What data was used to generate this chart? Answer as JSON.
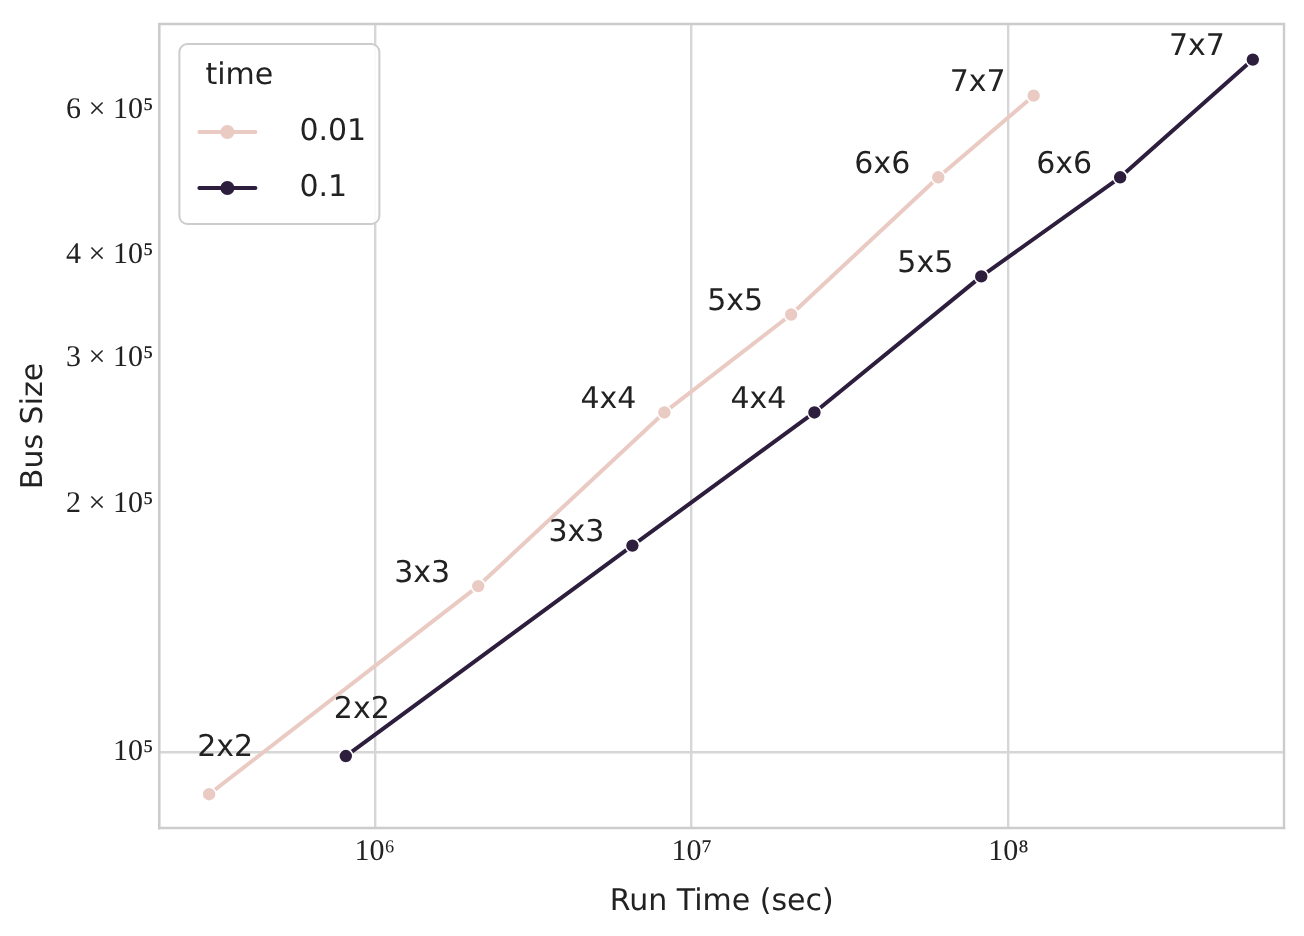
{
  "chart_data": {
    "type": "line",
    "xlabel": "Run Time (sec)",
    "ylabel": "Bus Size",
    "legend_title": "time",
    "legend": "top left",
    "log": "xy",
    "grid": true,
    "marker": "circle",
    "line_style": "solid",
    "xlim": [
      209000,
      740000000
    ],
    "ylim": [
      81000,
      762000
    ],
    "xticks": [
      {
        "value": 1000000,
        "label": "10⁶"
      },
      {
        "value": 10000000,
        "label": "10⁷"
      },
      {
        "value": 100000000,
        "label": "10⁸"
      }
    ],
    "yticks": [
      {
        "value": 100000,
        "label": "10⁵"
      },
      {
        "value": 200000,
        "label": "2 × 10⁵"
      },
      {
        "value": 300000,
        "label": "3 × 10⁵"
      },
      {
        "value": 400000,
        "label": "4 × 10⁵"
      },
      {
        "value": 600000,
        "label": "6 × 10⁵"
      }
    ],
    "series": [
      {
        "name": "0.01",
        "color": "#eacbc3",
        "x": [
          300000,
          2120000,
          8200000,
          20600000,
          60000000,
          120000000
        ],
        "values": [
          89000,
          159000,
          258000,
          339000,
          497000,
          624000
        ]
      },
      {
        "name": "0.1",
        "color": "#2d1e3e",
        "x": [
          810000,
          6500000,
          24400000,
          82000000,
          225000000,
          590000000
        ],
        "values": [
          99000,
          178000,
          258000,
          377000,
          497000,
          690000
        ]
      }
    ],
    "annotations": [
      {
        "text": "2x2",
        "x": 300000,
        "y": 89000
      },
      {
        "text": "3x3",
        "x": 2120000,
        "y": 159000
      },
      {
        "text": "4x4",
        "x": 8200000,
        "y": 258000
      },
      {
        "text": "5x5",
        "x": 20600000,
        "y": 339000
      },
      {
        "text": "6x6",
        "x": 60000000,
        "y": 497000
      },
      {
        "text": "7x7",
        "x": 120000000,
        "y": 624000
      },
      {
        "text": "2x2",
        "x": 810000,
        "y": 99000
      },
      {
        "text": "3x3",
        "x": 6500000,
        "y": 178000
      },
      {
        "text": "4x4",
        "x": 24400000,
        "y": 258000
      },
      {
        "text": "5x5",
        "x": 82000000,
        "y": 377000
      },
      {
        "text": "6x6",
        "x": 225000000,
        "y": 497000
      },
      {
        "text": "7x7",
        "x": 590000000,
        "y": 690000
      }
    ]
  }
}
